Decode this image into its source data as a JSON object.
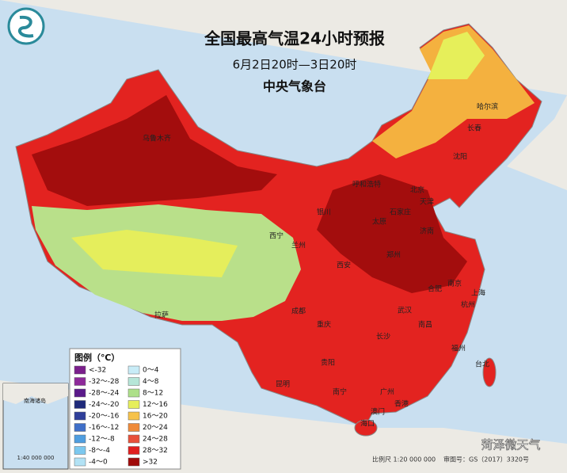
{
  "header": {
    "title": "全国最高气温24小时预报",
    "subtitle": "6月2日20时—3日20时",
    "agency": "中央气象台"
  },
  "legend": {
    "title": "图例（℃）",
    "items": [
      {
        "label": "<-32",
        "color": "#7b1f8c"
      },
      {
        "label": "-32～-28",
        "color": "#8e2a9a"
      },
      {
        "label": "-28～-24",
        "color": "#5a1a8a"
      },
      {
        "label": "-24～-20",
        "color": "#1f2a7a"
      },
      {
        "label": "-20～-16",
        "color": "#2f3f9a"
      },
      {
        "label": "-16～-12",
        "color": "#3f6fc8"
      },
      {
        "label": "-12～-8",
        "color": "#4f9ee0"
      },
      {
        "label": "-8～-4",
        "color": "#7cc8ef"
      },
      {
        "label": "-4～0",
        "color": "#b2e2f5"
      },
      {
        "label": "0～4",
        "color": "#c8ecf7"
      },
      {
        "label": "4～8",
        "color": "#b6e6d8"
      },
      {
        "label": "8～12",
        "color": "#aee08a"
      },
      {
        "label": "12～16",
        "color": "#e6ef5a"
      },
      {
        "label": "16～20",
        "color": "#f6c24a"
      },
      {
        "label": "20～24",
        "color": "#ef8a3a"
      },
      {
        "label": "24～28",
        "color": "#e8503a"
      },
      {
        "label": "28～32",
        "color": "#e01e1e"
      },
      {
        "label": ">32",
        "color": "#a00a0a"
      }
    ]
  },
  "cities": [
    "乌鲁木齐",
    "拉萨",
    "西宁",
    "兰州",
    "银川",
    "呼和浩特",
    "北京",
    "天津",
    "石家庄",
    "太原",
    "济南",
    "郑州",
    "西安",
    "成都",
    "重庆",
    "贵阳",
    "昆明",
    "南宁",
    "长沙",
    "武汉",
    "合肥",
    "南京",
    "上海",
    "杭州",
    "南昌",
    "福州",
    "台北",
    "广州",
    "香港",
    "澳门",
    "海口",
    "哈尔滨",
    "长春",
    "沈阳"
  ],
  "inset": {
    "title": "南海诸岛",
    "scale": "1:40 000 000"
  },
  "footer": {
    "scale": "比例尺 1:20 000 000",
    "approval": "审图号：GS（2017）3320号",
    "watermark": "菏泽微天气"
  }
}
